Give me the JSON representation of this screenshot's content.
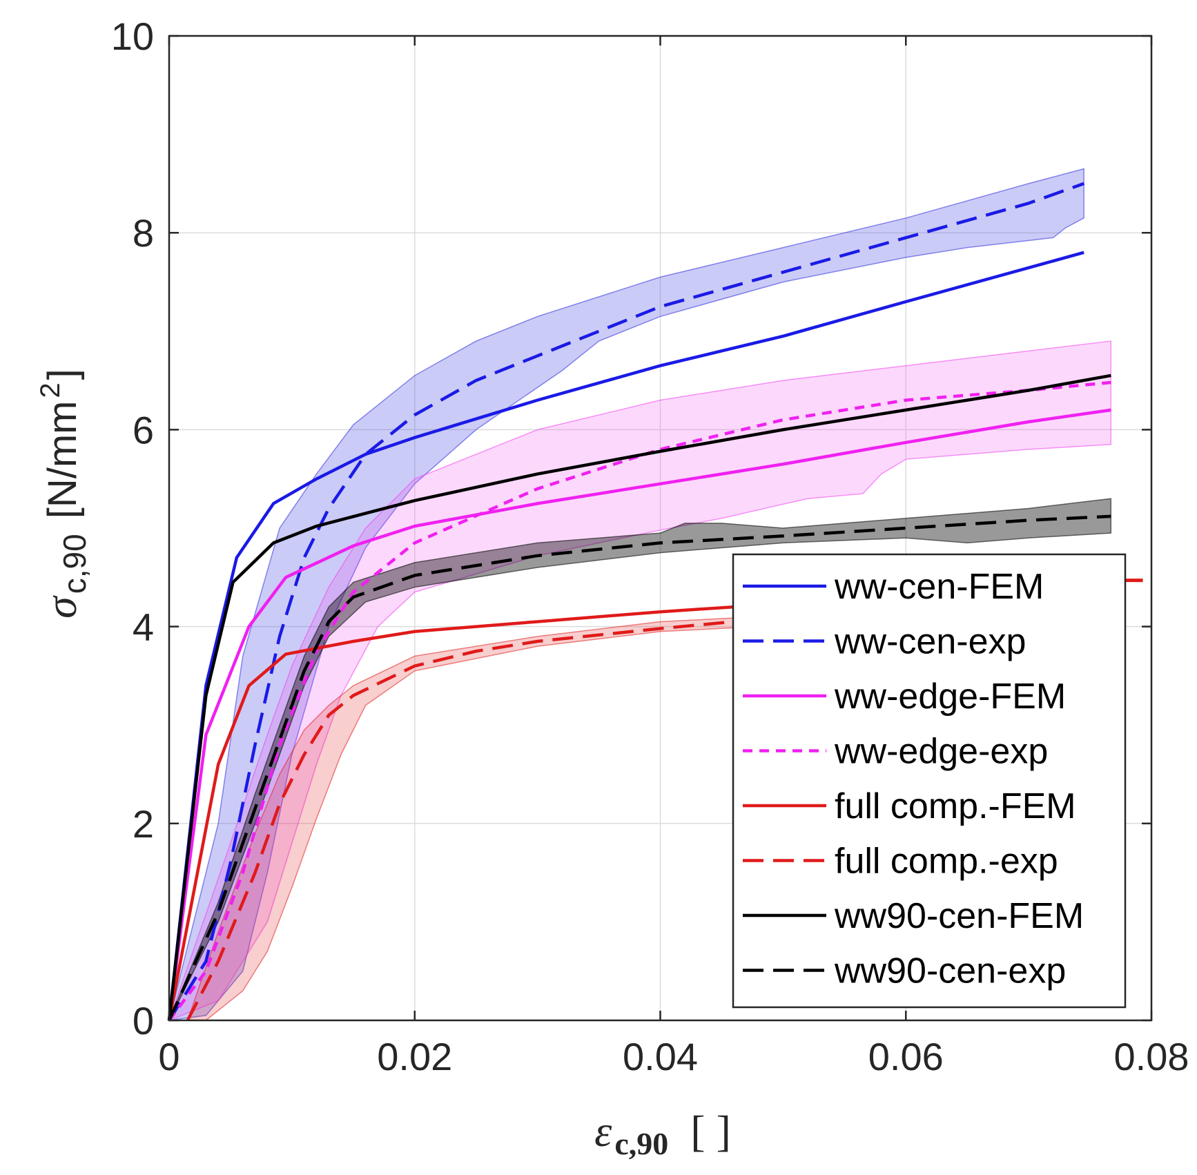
{
  "chart_data": {
    "type": "line",
    "title": "",
    "xlabel": {
      "symbol": "ε",
      "sub": "c,90",
      "unit": "[ ]"
    },
    "ylabel": {
      "symbol": "σ",
      "sub": "c,90",
      "unit": "[N/mm",
      "unit_sup": "2",
      "unit_close": "]"
    },
    "xlim": [
      0,
      0.08
    ],
    "ylim": [
      0,
      10
    ],
    "xticks": [
      0,
      0.02,
      0.04,
      0.06,
      0.08
    ],
    "xtick_labels": [
      "0",
      "0.02",
      "0.04",
      "0.06",
      "0.08"
    ],
    "yticks": [
      0,
      2,
      4,
      6,
      8,
      10
    ],
    "ytick_labels": [
      "0",
      "2",
      "4",
      "6",
      "8",
      "10"
    ],
    "grid": true,
    "legend_position": "lower-right",
    "colors": {
      "blue": "#1a1ae6",
      "magenta": "#f020f0",
      "red": "#e01a1a",
      "black": "#000000"
    },
    "bands": [
      {
        "name": "ww-cen-exp range",
        "color": "#3030e0",
        "opacity": 0.25,
        "upper": [
          [
            0,
            0
          ],
          [
            0.004,
            2.0
          ],
          [
            0.006,
            3.7
          ],
          [
            0.009,
            5.0
          ],
          [
            0.012,
            5.55
          ],
          [
            0.015,
            6.05
          ],
          [
            0.02,
            6.55
          ],
          [
            0.025,
            6.9
          ],
          [
            0.03,
            7.15
          ],
          [
            0.04,
            7.55
          ],
          [
            0.05,
            7.85
          ],
          [
            0.06,
            8.15
          ],
          [
            0.07,
            8.5
          ],
          [
            0.0745,
            8.65
          ]
        ],
        "lower": [
          [
            0.0745,
            8.15
          ],
          [
            0.073,
            8.05
          ],
          [
            0.072,
            7.95
          ],
          [
            0.065,
            7.85
          ],
          [
            0.06,
            7.75
          ],
          [
            0.05,
            7.5
          ],
          [
            0.04,
            7.15
          ],
          [
            0.035,
            6.9
          ],
          [
            0.032,
            6.6
          ],
          [
            0.025,
            6.0
          ],
          [
            0.02,
            5.45
          ],
          [
            0.016,
            4.8
          ],
          [
            0.013,
            4.0
          ],
          [
            0.01,
            2.7
          ],
          [
            0.008,
            1.5
          ],
          [
            0.006,
            0.5
          ],
          [
            0.003,
            0.05
          ],
          [
            0,
            0
          ]
        ]
      },
      {
        "name": "ww-edge-exp range",
        "color": "#f040f0",
        "opacity": 0.2,
        "upper": [
          [
            0,
            0
          ],
          [
            0.005,
            1.8
          ],
          [
            0.008,
            2.9
          ],
          [
            0.01,
            3.6
          ],
          [
            0.013,
            4.4
          ],
          [
            0.016,
            5.0
          ],
          [
            0.02,
            5.5
          ],
          [
            0.03,
            6.0
          ],
          [
            0.04,
            6.3
          ],
          [
            0.05,
            6.5
          ],
          [
            0.06,
            6.65
          ],
          [
            0.07,
            6.8
          ],
          [
            0.0767,
            6.9
          ]
        ],
        "lower": [
          [
            0.0767,
            5.85
          ],
          [
            0.07,
            5.8
          ],
          [
            0.06,
            5.7
          ],
          [
            0.058,
            5.55
          ],
          [
            0.0565,
            5.35
          ],
          [
            0.052,
            5.3
          ],
          [
            0.045,
            5.1
          ],
          [
            0.04,
            4.98
          ],
          [
            0.03,
            4.72
          ],
          [
            0.02,
            4.35
          ],
          [
            0.017,
            4.0
          ],
          [
            0.014,
            3.3
          ],
          [
            0.012,
            2.6
          ],
          [
            0.01,
            1.8
          ],
          [
            0.008,
            1.0
          ],
          [
            0.004,
            0.2
          ],
          [
            0,
            0
          ]
        ]
      },
      {
        "name": "ww90-cen-exp range",
        "color": "#000000",
        "opacity": 0.4,
        "upper": [
          [
            0,
            0
          ],
          [
            0.004,
            1.2
          ],
          [
            0.007,
            2.3
          ],
          [
            0.009,
            3.0
          ],
          [
            0.011,
            3.7
          ],
          [
            0.013,
            4.2
          ],
          [
            0.015,
            4.45
          ],
          [
            0.02,
            4.65
          ],
          [
            0.03,
            4.85
          ],
          [
            0.04,
            4.95
          ],
          [
            0.042,
            5.05
          ],
          [
            0.045,
            5.05
          ],
          [
            0.05,
            5.0
          ],
          [
            0.06,
            5.1
          ],
          [
            0.07,
            5.2
          ],
          [
            0.0767,
            5.3
          ]
        ],
        "lower": [
          [
            0.0767,
            4.95
          ],
          [
            0.07,
            4.9
          ],
          [
            0.065,
            4.85
          ],
          [
            0.06,
            4.9
          ],
          [
            0.05,
            4.85
          ],
          [
            0.04,
            4.75
          ],
          [
            0.03,
            4.6
          ],
          [
            0.02,
            4.4
          ],
          [
            0.016,
            4.25
          ],
          [
            0.013,
            3.9
          ],
          [
            0.011,
            3.4
          ],
          [
            0.009,
            2.7
          ],
          [
            0.007,
            2.0
          ],
          [
            0.004,
            1.0
          ],
          [
            0,
            0
          ]
        ]
      },
      {
        "name": "full comp.-exp range",
        "color": "#e02020",
        "opacity": 0.22,
        "upper": [
          [
            0.0015,
            0
          ],
          [
            0.004,
            0.9
          ],
          [
            0.007,
            1.9
          ],
          [
            0.009,
            2.5
          ],
          [
            0.011,
            2.95
          ],
          [
            0.013,
            3.2
          ],
          [
            0.015,
            3.4
          ],
          [
            0.02,
            3.7
          ],
          [
            0.03,
            3.9
          ],
          [
            0.04,
            4.05
          ],
          [
            0.048,
            4.1
          ]
        ],
        "lower": [
          [
            0.048,
            4.0
          ],
          [
            0.04,
            3.95
          ],
          [
            0.03,
            3.8
          ],
          [
            0.02,
            3.55
          ],
          [
            0.016,
            3.2
          ],
          [
            0.014,
            2.7
          ],
          [
            0.012,
            2.05
          ],
          [
            0.01,
            1.35
          ],
          [
            0.008,
            0.7
          ],
          [
            0.006,
            0.3
          ],
          [
            0.003,
            0.0
          ]
        ]
      }
    ],
    "series": [
      {
        "name": "ww-cen-FEM",
        "color": "#1a1ae6",
        "dash": "solid",
        "points": [
          [
            0,
            0
          ],
          [
            0.003,
            3.4
          ],
          [
            0.0055,
            4.7
          ],
          [
            0.0085,
            5.25
          ],
          [
            0.012,
            5.5
          ],
          [
            0.016,
            5.75
          ],
          [
            0.02,
            5.92
          ],
          [
            0.03,
            6.3
          ],
          [
            0.04,
            6.65
          ],
          [
            0.05,
            6.95
          ],
          [
            0.06,
            7.3
          ],
          [
            0.0745,
            7.8
          ]
        ]
      },
      {
        "name": "ww-cen-exp",
        "color": "#1a1ae6",
        "dash": "dashed",
        "points": [
          [
            0,
            0
          ],
          [
            0.003,
            0.6
          ],
          [
            0.005,
            1.6
          ],
          [
            0.007,
            2.8
          ],
          [
            0.009,
            3.9
          ],
          [
            0.011,
            4.7
          ],
          [
            0.013,
            5.2
          ],
          [
            0.016,
            5.75
          ],
          [
            0.02,
            6.15
          ],
          [
            0.025,
            6.5
          ],
          [
            0.03,
            6.75
          ],
          [
            0.035,
            7.0
          ],
          [
            0.04,
            7.25
          ],
          [
            0.05,
            7.6
          ],
          [
            0.06,
            7.95
          ],
          [
            0.07,
            8.3
          ],
          [
            0.0745,
            8.5
          ]
        ]
      },
      {
        "name": "ww-edge-FEM",
        "color": "#f020f0",
        "dash": "solid",
        "points": [
          [
            0,
            0
          ],
          [
            0.003,
            2.9
          ],
          [
            0.0065,
            4.0
          ],
          [
            0.0095,
            4.5
          ],
          [
            0.015,
            4.82
          ],
          [
            0.02,
            5.02
          ],
          [
            0.03,
            5.25
          ],
          [
            0.04,
            5.45
          ],
          [
            0.05,
            5.65
          ],
          [
            0.06,
            5.87
          ],
          [
            0.07,
            6.08
          ],
          [
            0.0767,
            6.2
          ]
        ]
      },
      {
        "name": "ww-edge-exp",
        "color": "#f020f0",
        "dash": "dotted",
        "points": [
          [
            0,
            0
          ],
          [
            0.003,
            0.5
          ],
          [
            0.006,
            1.5
          ],
          [
            0.009,
            2.8
          ],
          [
            0.012,
            3.75
          ],
          [
            0.015,
            4.35
          ],
          [
            0.02,
            4.85
          ],
          [
            0.03,
            5.4
          ],
          [
            0.04,
            5.8
          ],
          [
            0.05,
            6.1
          ],
          [
            0.06,
            6.3
          ],
          [
            0.07,
            6.4
          ],
          [
            0.0767,
            6.48
          ]
        ]
      },
      {
        "name": "full comp.-FEM",
        "color": "#e01a1a",
        "dash": "solid",
        "points": [
          [
            0,
            0
          ],
          [
            0.004,
            2.6
          ],
          [
            0.0065,
            3.4
          ],
          [
            0.0095,
            3.72
          ],
          [
            0.015,
            3.85
          ],
          [
            0.02,
            3.95
          ],
          [
            0.03,
            4.05
          ],
          [
            0.04,
            4.15
          ],
          [
            0.046,
            4.2
          ]
        ]
      },
      {
        "name": "full comp.-exp",
        "color": "#e01a1a",
        "dash": "dashed",
        "points": [
          [
            0.0015,
            0
          ],
          [
            0.004,
            0.6
          ],
          [
            0.007,
            1.5
          ],
          [
            0.009,
            2.2
          ],
          [
            0.011,
            2.7
          ],
          [
            0.013,
            3.1
          ],
          [
            0.015,
            3.3
          ],
          [
            0.02,
            3.6
          ],
          [
            0.025,
            3.75
          ],
          [
            0.03,
            3.85
          ],
          [
            0.04,
            3.98
          ],
          [
            0.046,
            4.05
          ]
        ]
      },
      {
        "name": "ww90-cen-FEM",
        "color": "#000000",
        "dash": "solid",
        "points": [
          [
            0,
            0
          ],
          [
            0.003,
            3.3
          ],
          [
            0.0052,
            4.45
          ],
          [
            0.0085,
            4.85
          ],
          [
            0.012,
            5.02
          ],
          [
            0.016,
            5.15
          ],
          [
            0.02,
            5.28
          ],
          [
            0.03,
            5.55
          ],
          [
            0.04,
            5.78
          ],
          [
            0.05,
            6.0
          ],
          [
            0.06,
            6.2
          ],
          [
            0.07,
            6.4
          ],
          [
            0.0767,
            6.55
          ]
        ]
      },
      {
        "name": "ww90-cen-exp",
        "color": "#000000",
        "dash": "dashed",
        "points": [
          [
            0,
            0
          ],
          [
            0.004,
            1.1
          ],
          [
            0.007,
            2.15
          ],
          [
            0.009,
            2.85
          ],
          [
            0.011,
            3.55
          ],
          [
            0.013,
            4.05
          ],
          [
            0.015,
            4.3
          ],
          [
            0.02,
            4.52
          ],
          [
            0.03,
            4.72
          ],
          [
            0.04,
            4.85
          ],
          [
            0.05,
            4.92
          ],
          [
            0.06,
            5.0
          ],
          [
            0.07,
            5.08
          ],
          [
            0.0767,
            5.12
          ]
        ]
      }
    ],
    "extra_marks": [
      {
        "name": "full comp.-exp tail",
        "color": "#e01a1a",
        "points": [
          [
            0.0778,
            4.47
          ],
          [
            0.0793,
            4.47
          ]
        ]
      }
    ],
    "legend": [
      {
        "label": "ww-cen-FEM",
        "color": "#1a1ae6",
        "dash": "solid"
      },
      {
        "label": "ww-cen-exp",
        "color": "#1a1ae6",
        "dash": "dashed"
      },
      {
        "label": "ww-edge-FEM",
        "color": "#f020f0",
        "dash": "solid"
      },
      {
        "label": "ww-edge-exp",
        "color": "#f020f0",
        "dash": "dotted"
      },
      {
        "label": "full comp.-FEM",
        "color": "#e01a1a",
        "dash": "solid"
      },
      {
        "label": "full comp.-exp",
        "color": "#e01a1a",
        "dash": "dashed"
      },
      {
        "label": "ww90-cen-FEM",
        "color": "#000000",
        "dash": "solid"
      },
      {
        "label": "ww90-cen-exp",
        "color": "#000000",
        "dash": "dashed"
      }
    ]
  }
}
